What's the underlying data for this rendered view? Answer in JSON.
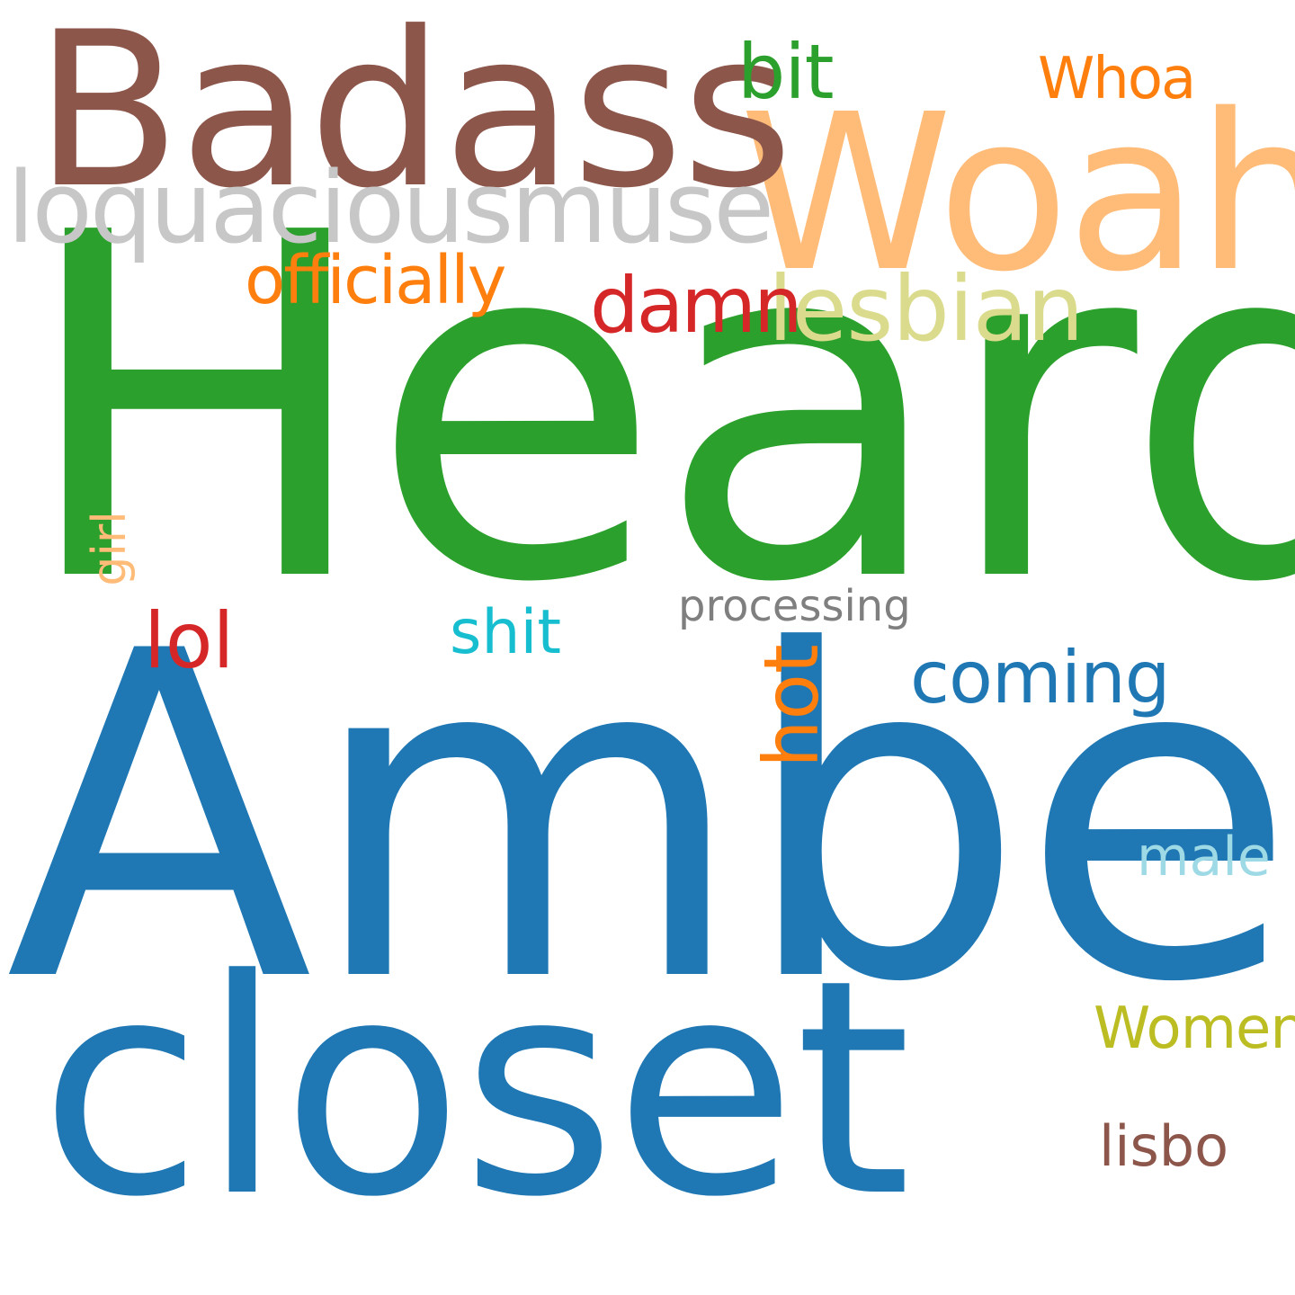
{
  "word_cloud": {
    "words": [
      {
        "text": "Heard",
        "color": "#2ca02c"
      },
      {
        "text": "Amber",
        "color": "#1f77b4"
      },
      {
        "text": "closet",
        "color": "#1f77b4"
      },
      {
        "text": "Woah",
        "color": "#ffbb78"
      },
      {
        "text": "Badass",
        "color": "#8c564b"
      },
      {
        "text": "loquaciousmuse",
        "color": "#c7c7c7"
      },
      {
        "text": "lesbian",
        "color": "#dbdb8d"
      },
      {
        "text": "officially",
        "color": "#ff7f0e"
      },
      {
        "text": "damn",
        "color": "#d62728"
      },
      {
        "text": "bit",
        "color": "#2ca02c"
      },
      {
        "text": "Whoa",
        "color": "#ff7f0e"
      },
      {
        "text": "girl",
        "color": "#ffbb78"
      },
      {
        "text": "processing",
        "color": "#7f7f7f"
      },
      {
        "text": "lol",
        "color": "#d62728"
      },
      {
        "text": "shit",
        "color": "#17becf"
      },
      {
        "text": "hot",
        "color": "#ff7f0e"
      },
      {
        "text": "coming",
        "color": "#1f77b4"
      },
      {
        "text": "male",
        "color": "#9edae5"
      },
      {
        "text": "Women",
        "color": "#bcbd22"
      },
      {
        "text": "lisbo",
        "color": "#8c564b"
      }
    ]
  }
}
